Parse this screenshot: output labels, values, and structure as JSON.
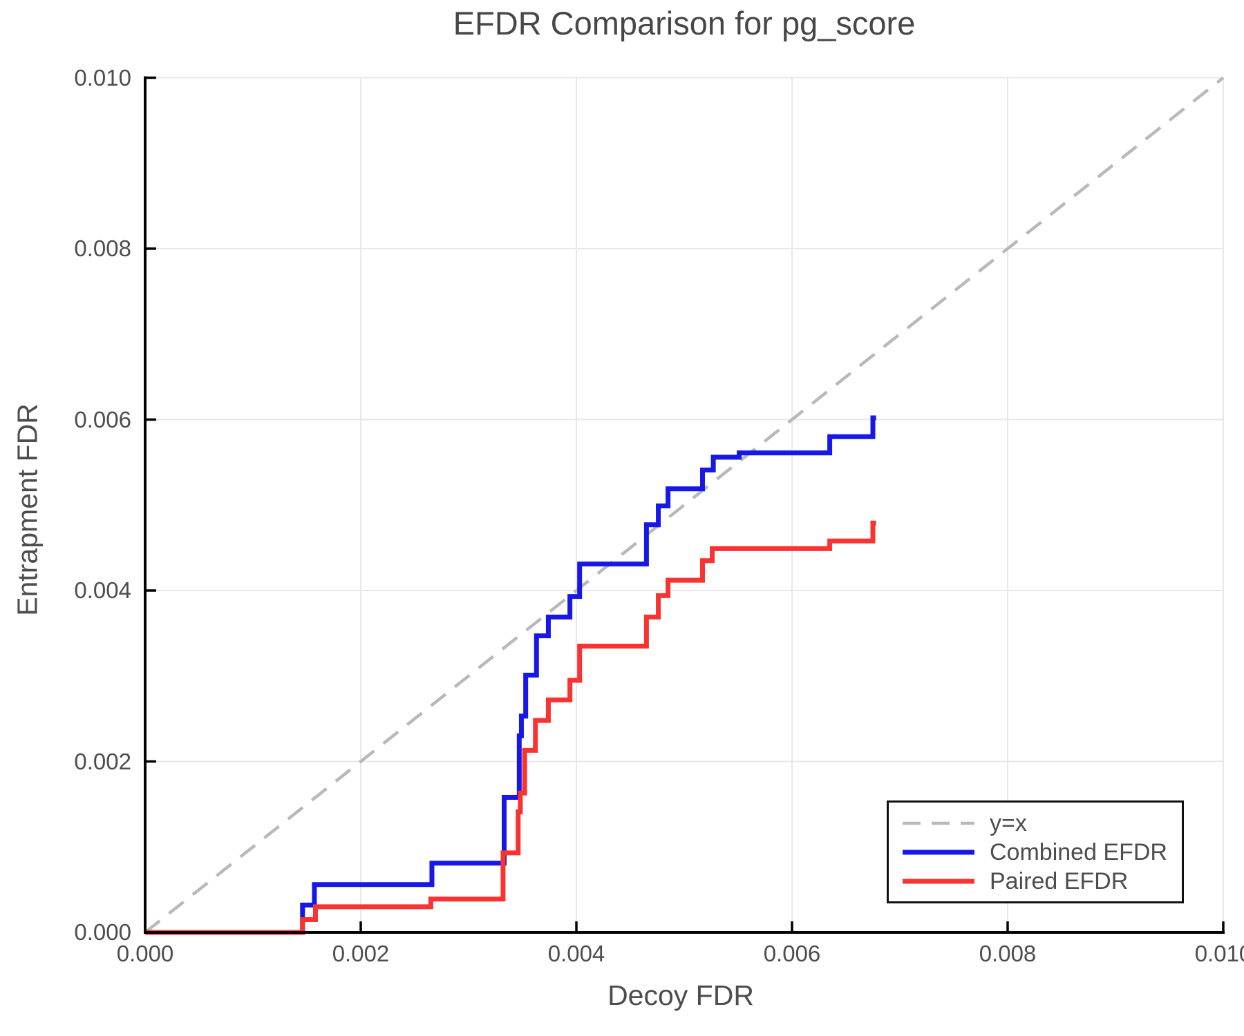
{
  "chart_data": {
    "type": "line",
    "title": "EFDR Comparison for pg_score",
    "xlabel": "Decoy FDR",
    "ylabel": "Entrapment FDR",
    "xlim": [
      0.0,
      0.01
    ],
    "ylim": [
      0.0,
      0.01
    ],
    "xticks": [
      0.0,
      0.002,
      0.004,
      0.006,
      0.008,
      0.01
    ],
    "yticks": [
      0.0,
      0.002,
      0.004,
      0.006,
      0.008,
      0.01
    ],
    "xtick_labels": [
      "0.000",
      "0.002",
      "0.004",
      "0.006",
      "0.008",
      "0.010"
    ],
    "ytick_labels": [
      "0.000",
      "0.002",
      "0.004",
      "0.006",
      "0.008",
      "0.010"
    ],
    "grid": true,
    "grid_color": "#e8e8e8",
    "spine_color": "#000000",
    "text_color": "#4d4d4d",
    "legend_position": "lower right",
    "series": [
      {
        "name": "y=x",
        "style": "dashed",
        "color": "#b9b9b9",
        "width": 4.5,
        "points": [
          [
            0.0,
            0.0
          ],
          [
            0.01,
            0.01
          ]
        ]
      },
      {
        "name": "Combined EFDR",
        "style": "step",
        "color": "#1717e8",
        "width": 7,
        "points": [
          [
            0.0,
            0.0
          ],
          [
            0.00146,
            0.00032
          ],
          [
            0.00157,
            0.00056
          ],
          [
            0.00266,
            0.00081
          ],
          [
            0.00333,
            0.00158
          ],
          [
            0.00347,
            0.0023
          ],
          [
            0.00349,
            0.00253
          ],
          [
            0.00353,
            0.00301
          ],
          [
            0.00363,
            0.00347
          ],
          [
            0.00374,
            0.00369
          ],
          [
            0.00394,
            0.00393
          ],
          [
            0.00403,
            0.00431
          ],
          [
            0.00465,
            0.00477
          ],
          [
            0.00476,
            0.00499
          ],
          [
            0.00485,
            0.00519
          ],
          [
            0.00517,
            0.00541
          ],
          [
            0.00527,
            0.00556
          ],
          [
            0.00551,
            0.00561
          ],
          [
            0.00635,
            0.0058
          ],
          [
            0.00675,
            0.00602
          ],
          [
            0.00678,
            0.00602
          ]
        ]
      },
      {
        "name": "Paired EFDR",
        "style": "step",
        "color": "#f93232",
        "width": 7,
        "points": [
          [
            0.0,
            0.0
          ],
          [
            0.00146,
            0.00015
          ],
          [
            0.00158,
            0.0003
          ],
          [
            0.00265,
            0.00039
          ],
          [
            0.00332,
            0.00093
          ],
          [
            0.00346,
            0.00141
          ],
          [
            0.00348,
            0.00163
          ],
          [
            0.00352,
            0.00213
          ],
          [
            0.00362,
            0.00248
          ],
          [
            0.00374,
            0.00272
          ],
          [
            0.00394,
            0.00295
          ],
          [
            0.00403,
            0.00335
          ],
          [
            0.00465,
            0.00369
          ],
          [
            0.00476,
            0.00394
          ],
          [
            0.00485,
            0.00412
          ],
          [
            0.00517,
            0.00435
          ],
          [
            0.00526,
            0.00449
          ],
          [
            0.00635,
            0.00458
          ],
          [
            0.00675,
            0.00479
          ],
          [
            0.00678,
            0.00479
          ]
        ]
      }
    ]
  }
}
